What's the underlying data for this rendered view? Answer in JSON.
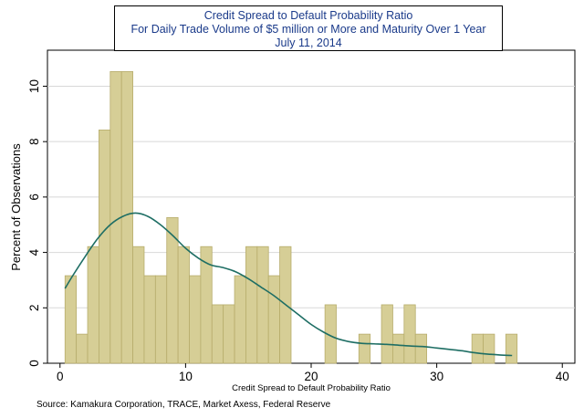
{
  "chart_data": {
    "type": "bar",
    "title_lines": [
      "Credit Spread to Default Probability Ratio",
      "For Daily Trade Volume of $5 million or More and Maturity Over 1 Year",
      "July 11, 2014"
    ],
    "xlabel": "Credit Spread to Default Probability Ratio",
    "ylabel": "Percent of Observations",
    "xlim": [
      -1,
      41
    ],
    "ylim": [
      0,
      11.3
    ],
    "xticks": [
      0,
      10,
      20,
      30,
      40
    ],
    "yticks": [
      0,
      2,
      4,
      6,
      8,
      10
    ],
    "bin_width": 0.9,
    "bars": [
      {
        "x0": 0.4,
        "value": 3.16
      },
      {
        "x0": 1.3,
        "value": 1.05
      },
      {
        "x0": 2.2,
        "value": 4.21
      },
      {
        "x0": 3.1,
        "value": 8.42
      },
      {
        "x0": 4.0,
        "value": 10.53
      },
      {
        "x0": 4.9,
        "value": 10.53
      },
      {
        "x0": 5.8,
        "value": 4.21
      },
      {
        "x0": 6.7,
        "value": 3.16
      },
      {
        "x0": 7.6,
        "value": 3.16
      },
      {
        "x0": 8.5,
        "value": 5.26
      },
      {
        "x0": 9.4,
        "value": 4.21
      },
      {
        "x0": 10.3,
        "value": 3.16
      },
      {
        "x0": 11.2,
        "value": 4.21
      },
      {
        "x0": 12.1,
        "value": 2.11
      },
      {
        "x0": 13.0,
        "value": 2.11
      },
      {
        "x0": 13.9,
        "value": 3.16
      },
      {
        "x0": 14.8,
        "value": 4.21
      },
      {
        "x0": 15.7,
        "value": 4.21
      },
      {
        "x0": 16.6,
        "value": 3.16
      },
      {
        "x0": 17.5,
        "value": 4.21
      },
      {
        "x0": 21.1,
        "value": 2.11
      },
      {
        "x0": 23.8,
        "value": 1.05
      },
      {
        "x0": 25.6,
        "value": 2.11
      },
      {
        "x0": 26.5,
        "value": 1.05
      },
      {
        "x0": 27.4,
        "value": 2.11
      },
      {
        "x0": 28.3,
        "value": 1.05
      },
      {
        "x0": 32.8,
        "value": 1.05
      },
      {
        "x0": 33.7,
        "value": 1.05
      },
      {
        "x0": 35.5,
        "value": 1.05
      }
    ],
    "density_curve": {
      "x": [
        0.4,
        1,
        2,
        3,
        4,
        5,
        6,
        7,
        8,
        9,
        10,
        11,
        12,
        13,
        14,
        15,
        16,
        17,
        18,
        19,
        20,
        21,
        22,
        23,
        24,
        25,
        26,
        27,
        28,
        29,
        30,
        31,
        32,
        33,
        34,
        35,
        36
      ],
      "y": [
        2.7,
        3.15,
        3.85,
        4.5,
        5.0,
        5.3,
        5.42,
        5.3,
        5.0,
        4.6,
        4.15,
        3.8,
        3.55,
        3.45,
        3.3,
        3.05,
        2.75,
        2.45,
        2.1,
        1.75,
        1.4,
        1.12,
        0.9,
        0.78,
        0.72,
        0.7,
        0.68,
        0.65,
        0.62,
        0.6,
        0.55,
        0.5,
        0.45,
        0.38,
        0.33,
        0.3,
        0.28
      ]
    },
    "colors": {
      "bar_fill": "#d6ce96",
      "bar_stroke": "#b7ad6c",
      "curve": "#1e6e64",
      "grid": "#d8d8d8",
      "title_text": "#1a3a8a"
    }
  },
  "source": "Source: Kamakura Corporation, TRACE, Market Axess, Federal Reserve"
}
